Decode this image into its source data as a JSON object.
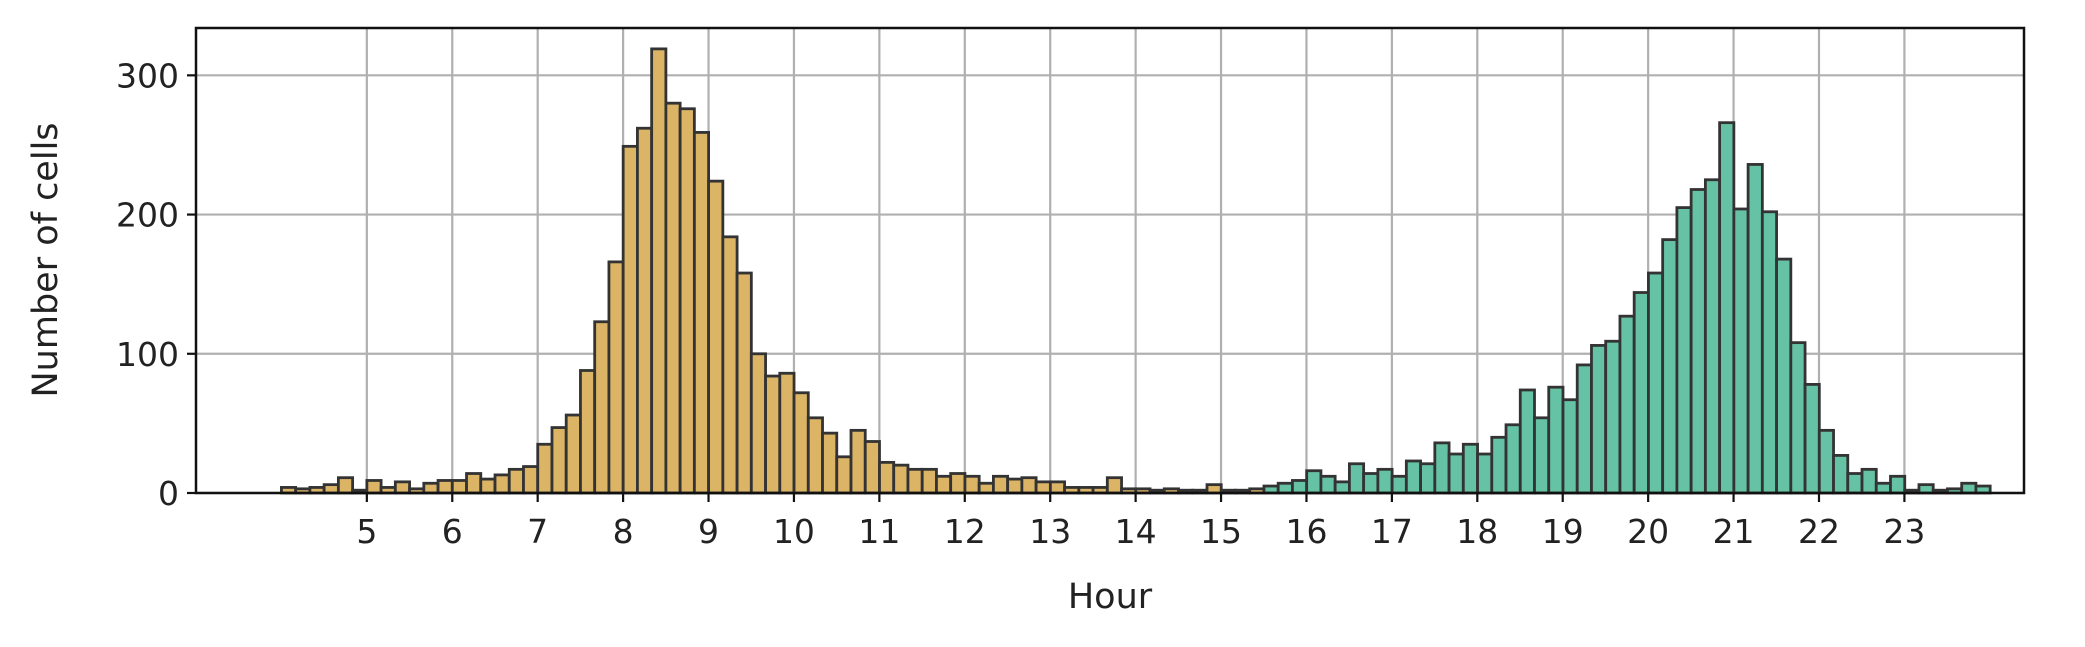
{
  "chart_data": {
    "type": "bar",
    "xlabel": "Hour",
    "ylabel": "Number of cells",
    "xlim": [
      3.0,
      24.4
    ],
    "ylim": [
      0,
      334
    ],
    "xticks": [
      5,
      6,
      7,
      8,
      9,
      10,
      11,
      12,
      13,
      14,
      15,
      16,
      17,
      18,
      19,
      20,
      21,
      22,
      23
    ],
    "yticks": [
      0,
      100,
      200,
      300
    ],
    "grid": true,
    "bin_start": 4.0,
    "bin_width": 0.1667,
    "colors": {
      "morning": "#dbb466",
      "evening": "#66c2a5",
      "edge": "#333333",
      "grid": "#b0b0b0"
    },
    "series": [
      {
        "color": "#dbb466",
        "values": [
          4,
          3,
          4,
          6,
          11,
          2,
          9,
          4,
          8,
          3,
          7,
          9,
          9,
          14,
          10,
          13,
          17,
          19,
          35,
          47,
          56,
          88,
          123,
          166,
          249,
          262,
          319,
          280,
          276,
          259,
          224,
          184,
          158,
          100,
          84,
          86,
          72,
          54,
          43,
          26,
          45,
          37,
          22,
          20,
          17,
          17,
          12,
          14,
          12,
          7,
          12,
          10,
          11,
          8,
          8,
          4,
          4,
          4,
          11,
          3,
          3,
          2,
          3,
          2,
          2,
          6,
          2,
          2,
          3
        ]
      },
      {
        "color": "#66c2a5",
        "values": [
          5,
          7,
          9,
          16,
          12,
          8,
          21,
          14,
          17,
          12,
          23,
          21,
          36,
          28,
          35,
          28,
          40,
          49,
          74,
          54,
          76,
          67,
          92,
          106,
          109,
          127,
          144,
          158,
          182,
          205,
          218,
          225,
          266,
          204,
          236,
          202,
          168,
          108,
          78,
          45,
          27,
          14,
          17,
          7,
          12,
          2,
          6,
          2,
          3,
          7,
          5
        ]
      }
    ]
  }
}
